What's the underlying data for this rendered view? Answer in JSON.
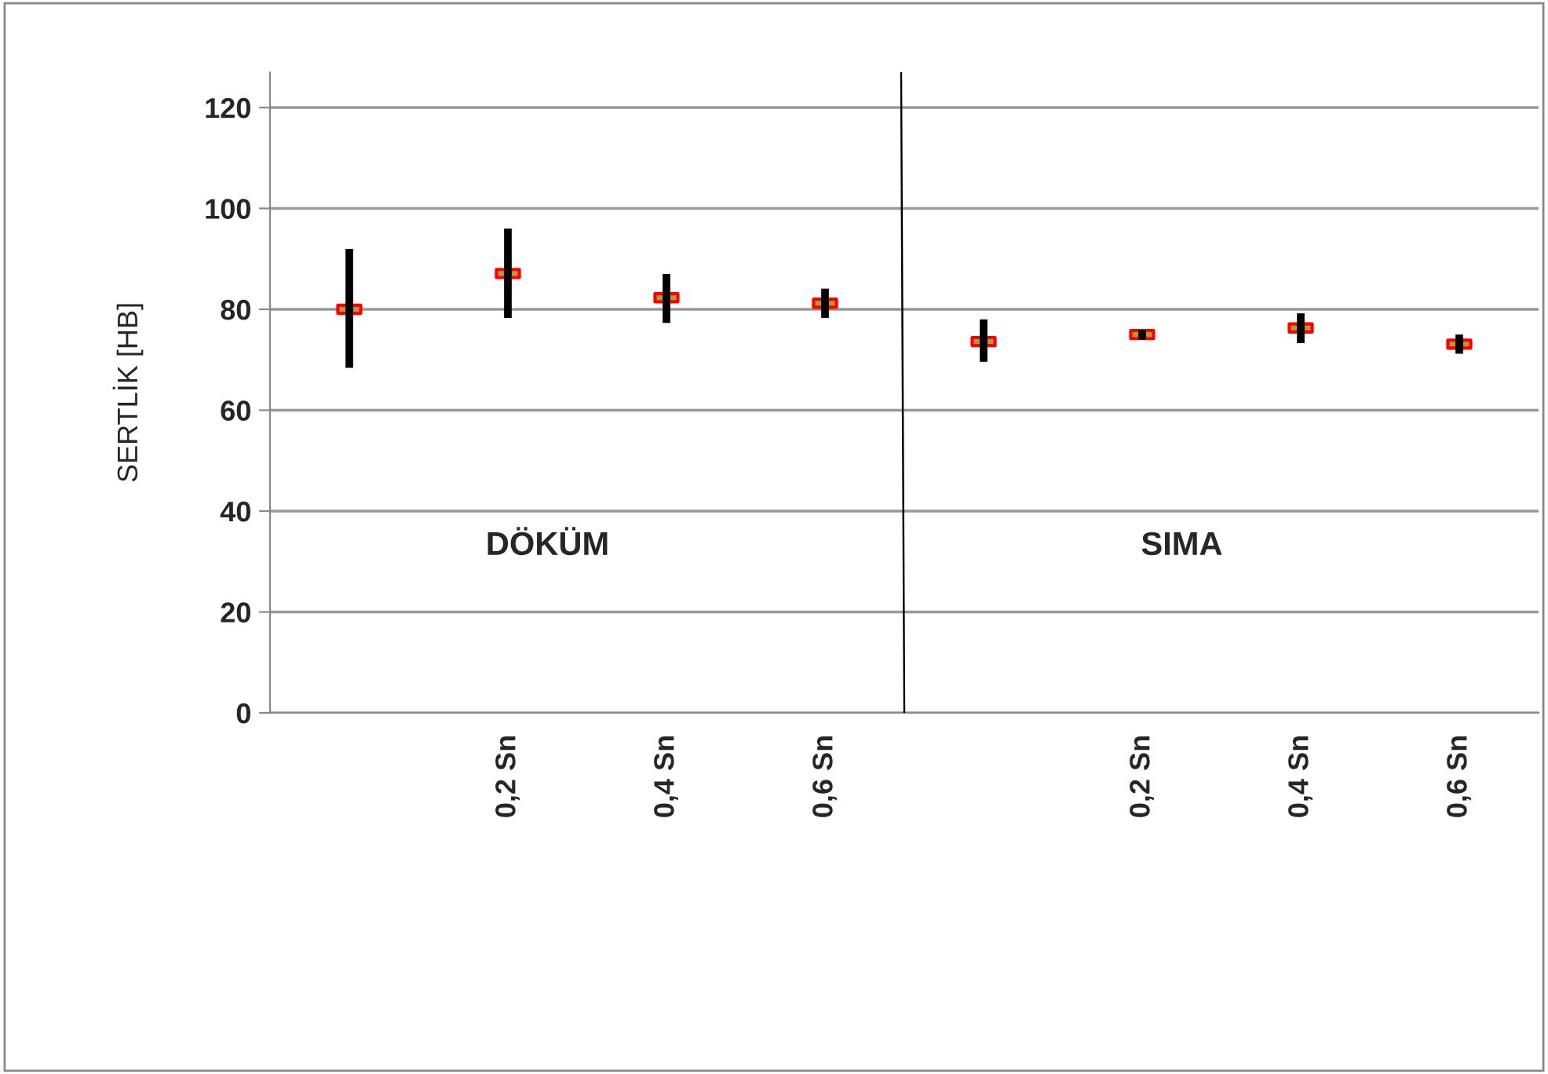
{
  "chart_data": {
    "type": "scatter",
    "ylabel": "SERTLİK [HB]",
    "categories": [
      null,
      "0,2 Sn",
      "0,4 Sn",
      "0,6 Sn",
      null,
      "0,2 Sn",
      "0,4 Sn",
      "0,6 Sn"
    ],
    "series": [
      {
        "color": "#ff0000",
        "values": [
          80,
          87.1,
          82.3,
          81.2,
          73.6,
          75,
          76.3,
          73.1
        ],
        "errors": [
          [
            68.4,
            92
          ],
          [
            78.3,
            96
          ],
          [
            77.3,
            87
          ],
          [
            78.3,
            84.1
          ],
          [
            69.6,
            78
          ],
          [
            74,
            75.9
          ],
          [
            73.3,
            79.2
          ],
          [
            71.2,
            75
          ]
        ]
      }
    ],
    "ylim": [
      0,
      127
    ],
    "yticks": [
      0,
      20,
      40,
      60,
      80,
      100,
      120
    ],
    "grid": "y",
    "marker": "square",
    "annotations": [
      "DÖKÜM",
      "SIMA"
    ]
  }
}
